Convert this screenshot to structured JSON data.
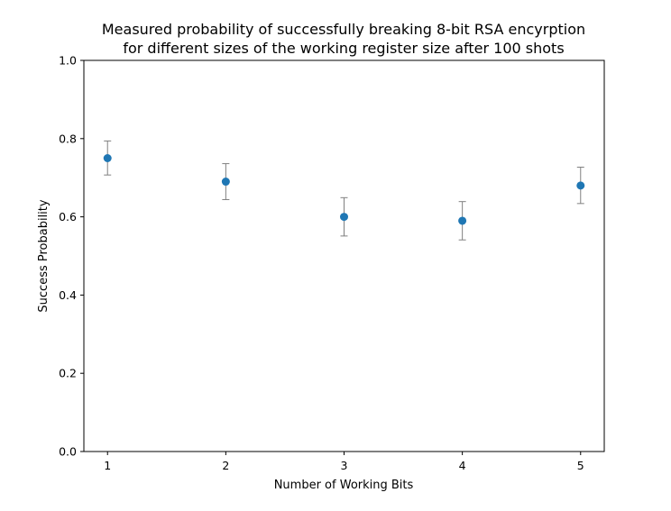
{
  "chart_data": {
    "type": "scatter",
    "title_lines": [
      "Measured probability of successfully breaking 8-bit RSA encyrption",
      "for different sizes of the working register size after 100 shots"
    ],
    "xlabel": "Number of Working Bits",
    "ylabel": "Success Probability",
    "x": [
      1,
      2,
      3,
      4,
      5
    ],
    "y": [
      0.75,
      0.69,
      0.6,
      0.59,
      0.68
    ],
    "yerr_upper": [
      0.794,
      0.736,
      0.649,
      0.639,
      0.727
    ],
    "yerr_lower": [
      0.707,
      0.644,
      0.551,
      0.541,
      0.634
    ],
    "xlim": [
      0.8,
      5.2
    ],
    "ylim": [
      0.0,
      1.0
    ],
    "xticks": [
      "1",
      "2",
      "3",
      "4",
      "5"
    ],
    "yticks": [
      "0.0",
      "0.2",
      "0.4",
      "0.6",
      "0.8",
      "1.0"
    ],
    "grid": false,
    "marker_color": "#1f77b4",
    "errorbar_color": "#808080"
  }
}
